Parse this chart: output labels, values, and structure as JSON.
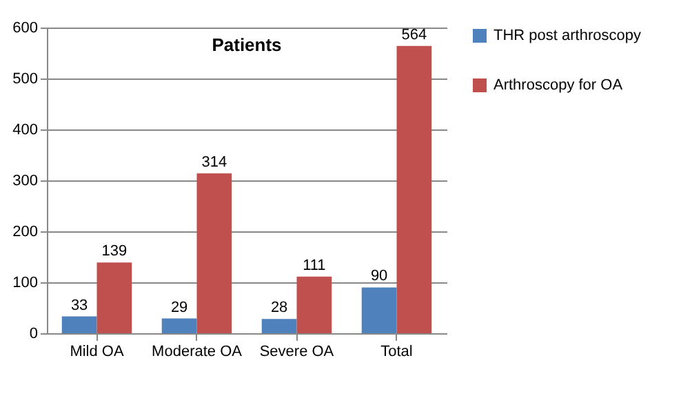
{
  "chart_data": {
    "type": "bar",
    "title": "Patients",
    "categories": [
      "Mild OA",
      "Moderate OA",
      "Severe OA",
      "Total"
    ],
    "series": [
      {
        "name": "THR post arthroscopy",
        "color": "#4f81bd",
        "values": [
          33,
          29,
          28,
          90
        ]
      },
      {
        "name": "Arthroscopy for OA",
        "color": "#c0504d",
        "values": [
          139,
          314,
          111,
          564
        ]
      }
    ],
    "ylim": [
      0,
      600
    ],
    "yticks": [
      0,
      100,
      200,
      300,
      400,
      500,
      600
    ],
    "grid": "y",
    "legend": "right",
    "data_labels": true
  }
}
